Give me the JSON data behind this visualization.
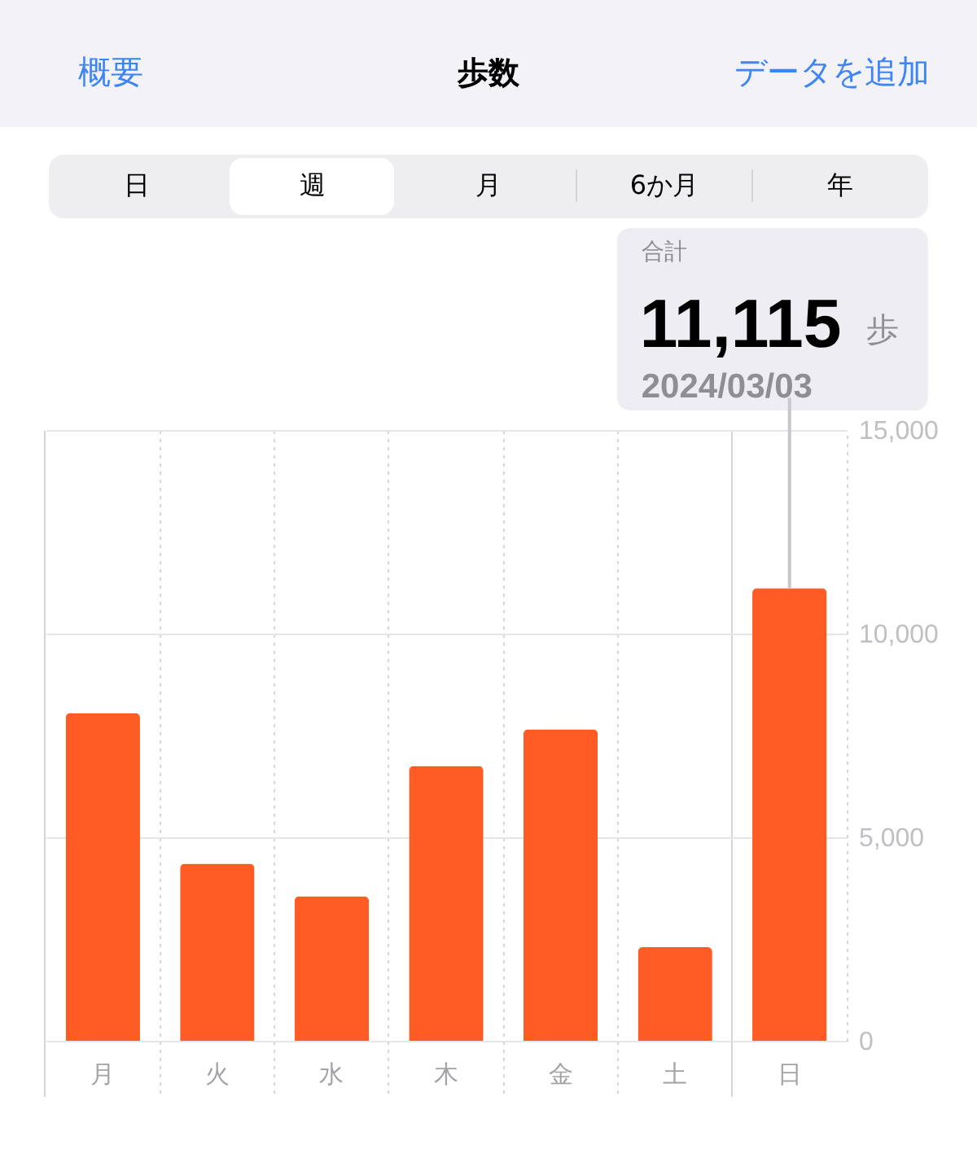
{
  "chart_data": {
    "type": "bar",
    "title": "歩数",
    "categories": [
      "月",
      "火",
      "水",
      "木",
      "金",
      "土",
      "日"
    ],
    "values": [
      8050,
      4350,
      3550,
      6750,
      7650,
      2300,
      11115
    ],
    "color": "#fe5b25",
    "ylim": [
      0,
      15000
    ],
    "yticks": [
      0,
      {
        "value": 5000,
        "label": "5,000"
      },
      {
        "value": 10000,
        "label": "10,000"
      },
      {
        "value": 15000,
        "label": "15,000"
      }
    ],
    "grid": true,
    "annotations": [
      "概要",
      "データを追加",
      "日",
      "週",
      "月",
      "6か月",
      "年",
      "合計",
      "11,115",
      "歩",
      {
        "text": "2024/03/03",
        "x": "日",
        "y": 11115
      }
    ]
  }
}
